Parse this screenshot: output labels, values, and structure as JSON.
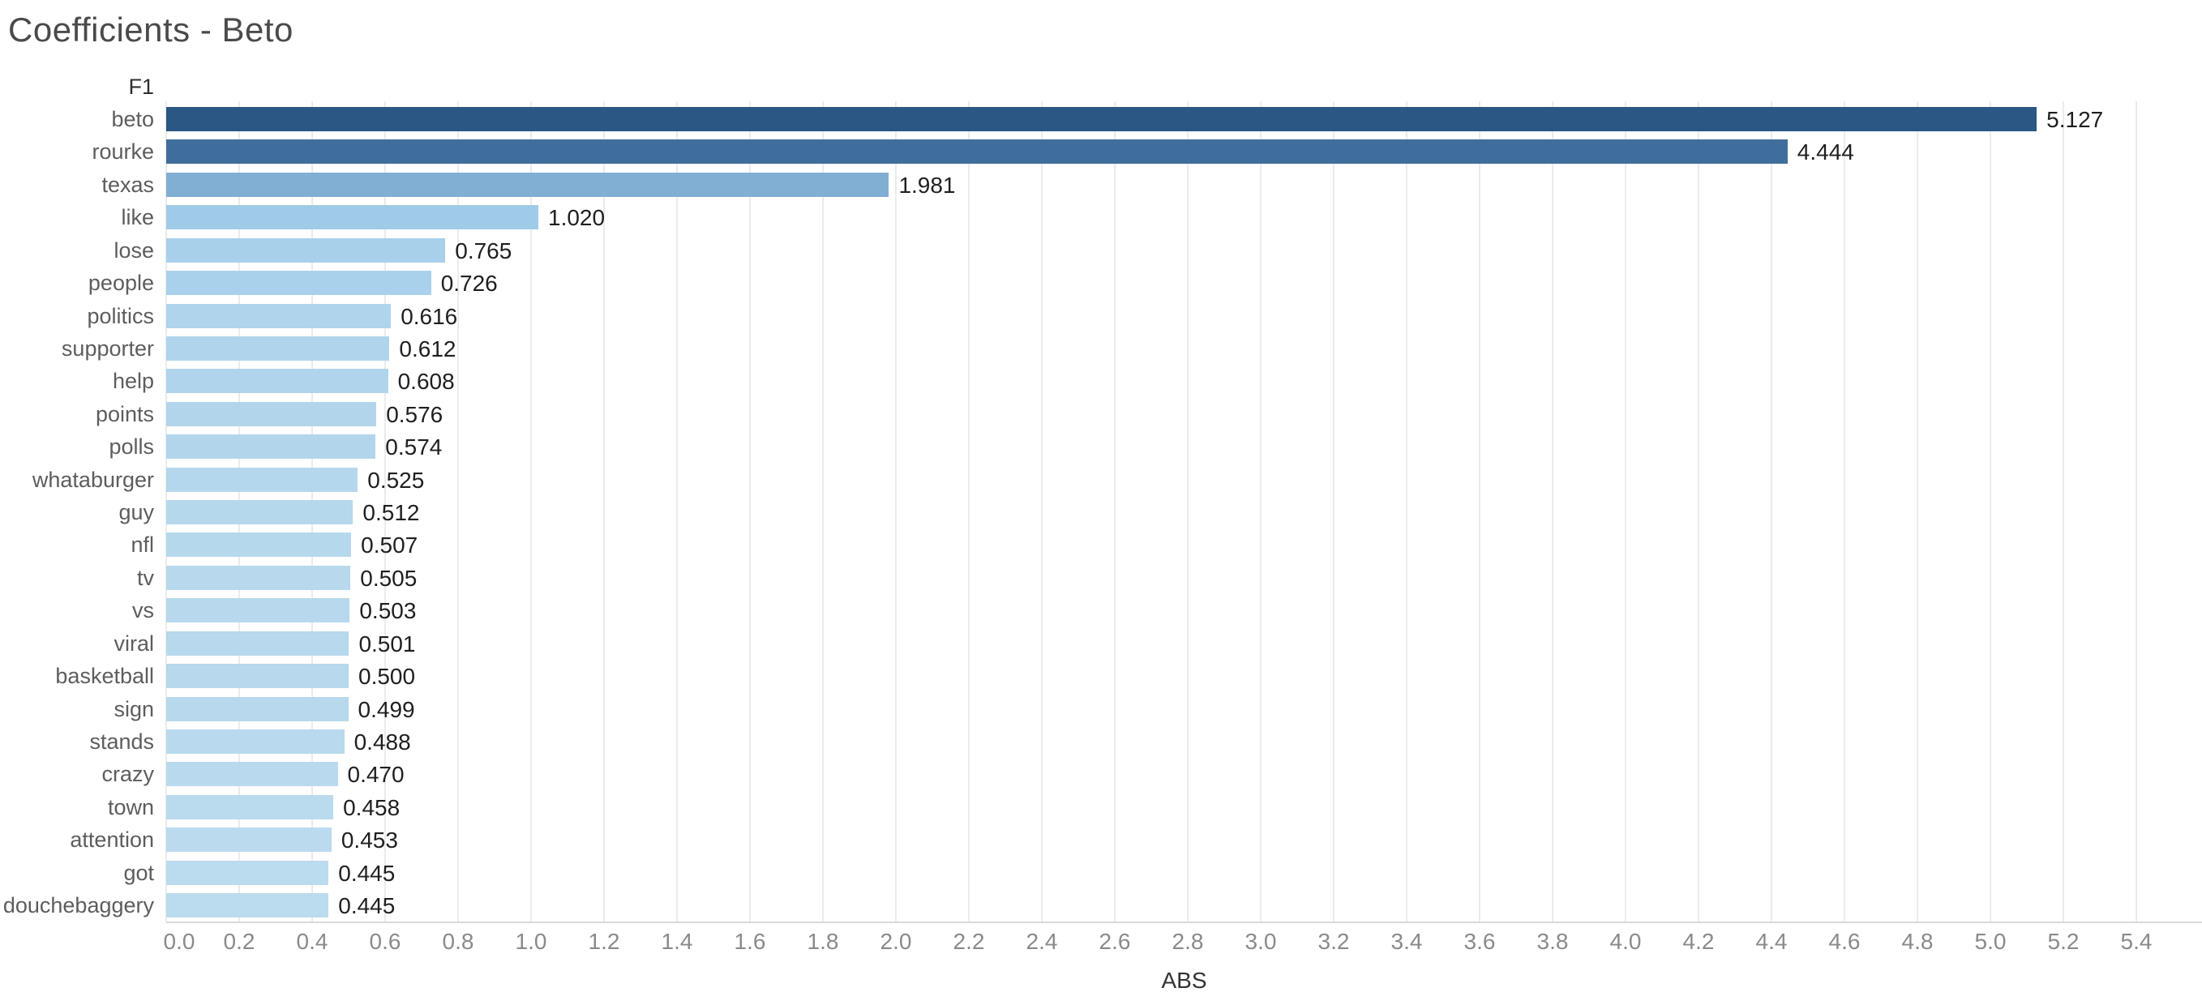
{
  "title": "Coefficients - Beto",
  "chart_data": {
    "type": "bar",
    "orientation": "horizontal",
    "title": "Coefficients - Beto",
    "row_header": "F1",
    "xlabel": "ABS",
    "categories": [
      "beto",
      "rourke",
      "texas",
      "like",
      "lose",
      "people",
      "politics",
      "supporter",
      "help",
      "points",
      "polls",
      "whataburger",
      "guy",
      "nfl",
      "tv",
      "vs",
      "viral",
      "basketball",
      "sign",
      "stands",
      "crazy",
      "town",
      "attention",
      "got",
      "douchebaggery"
    ],
    "values": [
      5.127,
      4.444,
      1.981,
      1.02,
      0.765,
      0.726,
      0.616,
      0.612,
      0.608,
      0.576,
      0.574,
      0.525,
      0.512,
      0.507,
      0.505,
      0.503,
      0.501,
      0.5,
      0.499,
      0.488,
      0.47,
      0.458,
      0.453,
      0.445,
      0.445
    ],
    "value_label_decimals": 3,
    "bar_colors": [
      "#2a5783",
      "#3f6e9c",
      "#81aed3",
      "#9fcbe8",
      "#a8d0ea",
      "#aad1eb",
      "#b0d4ec",
      "#b0d4ec",
      "#b0d4ec",
      "#b2d5ec",
      "#b2d5ec",
      "#b5d7ed",
      "#b6d8ed",
      "#b6d8ed",
      "#b7d8ed",
      "#b7d8ed",
      "#b7d8ed",
      "#b7d8ed",
      "#b7d8ed",
      "#b8d9ee",
      "#b9d9ee",
      "#badaee",
      "#bbdaee",
      "#bbdbee",
      "#bbdbee"
    ],
    "x_ticks": [
      0.0,
      0.2,
      0.4,
      0.6,
      0.8,
      1.0,
      1.2,
      1.4,
      1.6,
      1.8,
      2.0,
      2.2,
      2.4,
      2.6,
      2.8,
      3.0,
      3.2,
      3.4,
      3.6,
      3.8,
      4.0,
      4.2,
      4.4,
      4.6,
      4.8,
      5.0,
      5.2,
      5.4
    ],
    "xlim": [
      0,
      5.58
    ],
    "grid": true,
    "legend": "none",
    "gridline_color": "#ebebeb",
    "axis_line_color": "#d9d9d9",
    "tick_label_color": "#8a8a8a",
    "category_label_color": "#5d5d5d",
    "value_label_color": "#1f1f1f",
    "title_color": "#4a4a4a"
  }
}
